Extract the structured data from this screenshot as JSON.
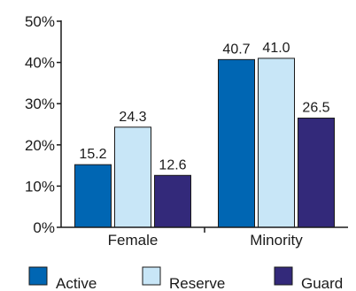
{
  "chart_data": {
    "type": "bar",
    "categories": [
      "Female",
      "Minority"
    ],
    "series": [
      {
        "name": "Active",
        "values": [
          15.2,
          40.7
        ],
        "color": "#0066b3"
      },
      {
        "name": "Reserve",
        "values": [
          24.3,
          41.0
        ],
        "color": "#c8e6f7"
      },
      {
        "name": "Guard",
        "values": [
          12.6,
          26.5
        ],
        "color": "#33297a"
      }
    ],
    "value_labels": [
      [
        "15.2",
        "40.7"
      ],
      [
        "24.3",
        "41.0"
      ],
      [
        "12.6",
        "26.5"
      ]
    ],
    "yticks": [
      0,
      10,
      20,
      30,
      40,
      50
    ],
    "ytick_labels": [
      "0%",
      "10%",
      "20%",
      "30%",
      "40%",
      "50%"
    ],
    "ylim": [
      0,
      50
    ],
    "grid": false,
    "legend_position": "bottom",
    "bar_edge_color": "#1a1a1a"
  }
}
